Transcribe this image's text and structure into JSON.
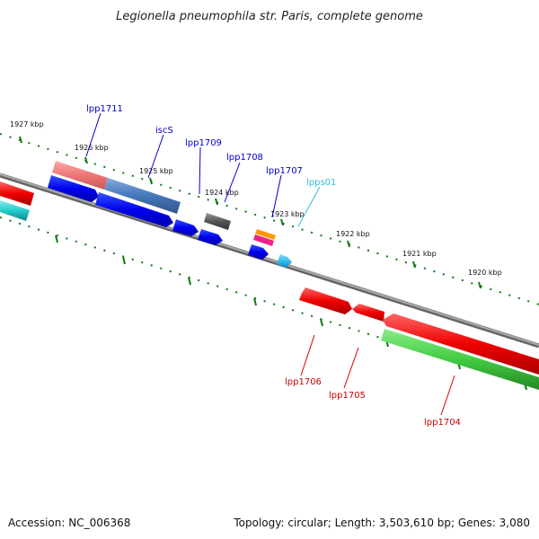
{
  "title": "Legionella pneumophila str. Paris, complete genome",
  "footer": {
    "accession": "Accession: NC_006368",
    "summary": "Topology: circular; Length: 3,503,610 bp; Genes: 3,080"
  },
  "scale_labels": [
    "1927 kbp",
    "1926 kbp",
    "1925 kbp",
    "1924 kbp",
    "1923 kbp",
    "1922 kbp",
    "1921 kbp",
    "1920 kbp"
  ],
  "gene_labels": [
    {
      "text": "lpp1711",
      "color": "#0000cc"
    },
    {
      "text": "iscS",
      "color": "#0000cc"
    },
    {
      "text": "lpp1709",
      "color": "#0000cc"
    },
    {
      "text": "lpp1708",
      "color": "#0000cc"
    },
    {
      "text": "lpp1707",
      "color": "#0000cc"
    },
    {
      "text": "lpps01",
      "color": "#33bbdd"
    },
    {
      "text": "lpp1706",
      "color": "#cc0000"
    },
    {
      "text": "lpp1705",
      "color": "#cc0000"
    },
    {
      "text": "lpp1704",
      "color": "#cc0000"
    }
  ],
  "colors": {
    "forward_cds": "#0000ee",
    "reverse_cds": "#ee0000",
    "trna": "#33bbee",
    "rna": "#44cc44",
    "backbone": "#888888",
    "ticks": "#117711"
  }
}
